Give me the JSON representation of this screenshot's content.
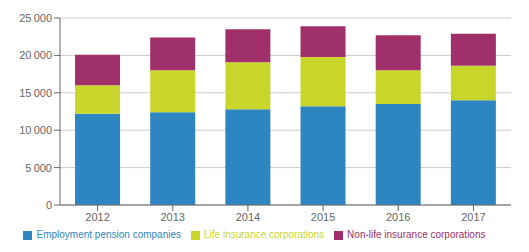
{
  "chart_data": {
    "type": "bar",
    "stacked": true,
    "categories": [
      "2012",
      "2013",
      "2014",
      "2015",
      "2016",
      "2017"
    ],
    "series": [
      {
        "name": "Employment pension companies",
        "color": "#2e86c1",
        "values": [
          12200,
          12400,
          12800,
          13200,
          13500,
          14000
        ]
      },
      {
        "name": "Life insurance corporations",
        "color": "#c8d62b",
        "values": [
          3800,
          5600,
          6300,
          6600,
          4500,
          4600
        ]
      },
      {
        "name": "Non-life insurance corporations",
        "color": "#a0306a",
        "values": [
          4100,
          4400,
          4400,
          4100,
          4700,
          4300
        ]
      }
    ],
    "ylim": [
      0,
      25000
    ],
    "yticks": [
      0,
      {
        "value": 5000,
        "label": "5 000"
      },
      {
        "value": 10000,
        "label": "10 000"
      },
      {
        "value": 15000,
        "label": "15 000"
      },
      {
        "value": 20000,
        "label": "20 000"
      },
      {
        "value": 25000,
        "label": "25 000"
      }
    ],
    "grid": true,
    "legend": "bottom"
  }
}
